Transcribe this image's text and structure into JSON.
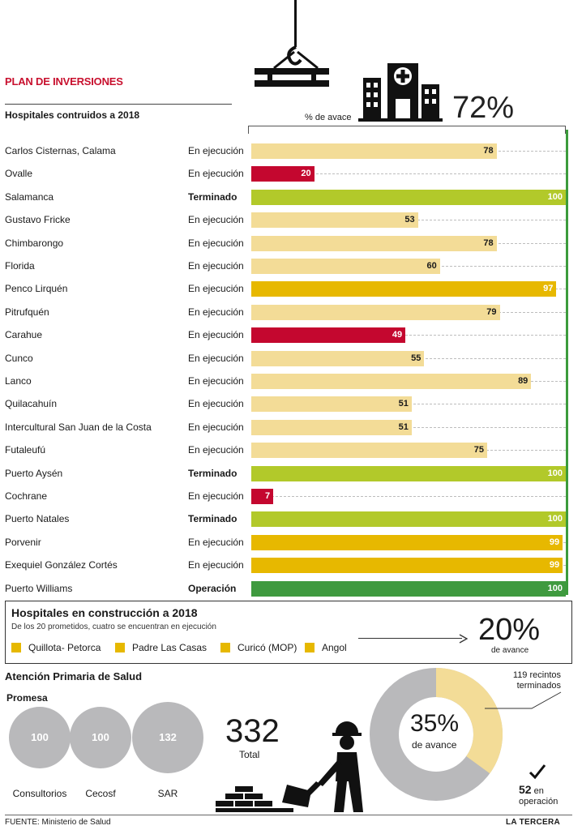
{
  "header": {
    "plan_title": "PLAN DE INVERSIONES",
    "subtitle": "Hospitales contruidos a 2018",
    "pct_axis_label": "% de avace",
    "total_progress": "72%"
  },
  "colors": {
    "light": "#f3dc97",
    "red": "#c4072f",
    "olive": "#b2c92a",
    "gold": "#e7b800",
    "green": "#3f9a3f"
  },
  "chart_data": {
    "type": "bar",
    "orientation": "horizontal",
    "title": "Hospitales contruidos a 2018",
    "xlabel": "% de avace",
    "xlim": [
      0,
      100
    ],
    "categories": [
      "Carlos Cisternas, Calama",
      "Ovalle",
      "Salamanca",
      "Gustavo Fricke",
      "Chimbarongo",
      "Florida",
      "Penco Lirquén",
      "Pitrufquén",
      "Carahue",
      "Cunco",
      "Lanco",
      "Quilacahuín",
      "Intercultural San Juan de la Costa",
      "Futaleufú",
      "Puerto Aysén",
      "Cochrane",
      "Puerto Natales",
      "Porvenir",
      "Exequiel González Cortés",
      "Puerto Williams"
    ],
    "values": [
      78,
      20,
      100,
      53,
      78,
      60,
      97,
      79,
      49,
      55,
      89,
      51,
      51,
      75,
      100,
      7,
      100,
      99,
      99,
      100
    ],
    "status": [
      "En ejecución",
      "En ejecución",
      "Terminado",
      "En ejecución",
      "En ejecución",
      "En ejecución",
      "En ejecución",
      "En ejecución",
      "En ejecución",
      "En ejecución",
      "En ejecución",
      "En ejecución",
      "En ejecución",
      "En ejecución",
      "Terminado",
      "En ejecución",
      "Terminado",
      "En ejecución",
      "En ejecución",
      "Operación"
    ],
    "bar_color_keys": [
      "light",
      "red",
      "olive",
      "light",
      "light",
      "light",
      "gold",
      "light",
      "red",
      "light",
      "light",
      "light",
      "light",
      "light",
      "olive",
      "red",
      "olive",
      "gold",
      "gold",
      "green"
    ]
  },
  "construction": {
    "title": "Hospitales en construcción a 2018",
    "subtitle": "De los 20 prometidos, cuatro se encuentran en ejecución",
    "items": [
      "Quillota- Petorca",
      "Padre Las Casas",
      "Curicó (MOP)",
      "Angol"
    ],
    "progress": "20%",
    "progress_label": "de avance"
  },
  "primary_care": {
    "title": "Atención Primaria de Salud",
    "promesa_label": "Promesa",
    "circles": [
      {
        "value": "100",
        "label": "Consultorios"
      },
      {
        "value": "100",
        "label": "Cecosf"
      },
      {
        "value": "132",
        "label": "SAR"
      }
    ],
    "total_value": "332",
    "total_label": "Total",
    "donut": {
      "percent": 35,
      "percent_text": "35%",
      "label": "de avance"
    },
    "recintos_line1": "119 recintos",
    "recintos_line2": "terminados",
    "operacion_num": "52",
    "operacion_en": "en",
    "operacion_label": "operación"
  },
  "footer": {
    "source": "FUENTE: Ministerio de Salud",
    "brand": "LA TERCERA"
  }
}
